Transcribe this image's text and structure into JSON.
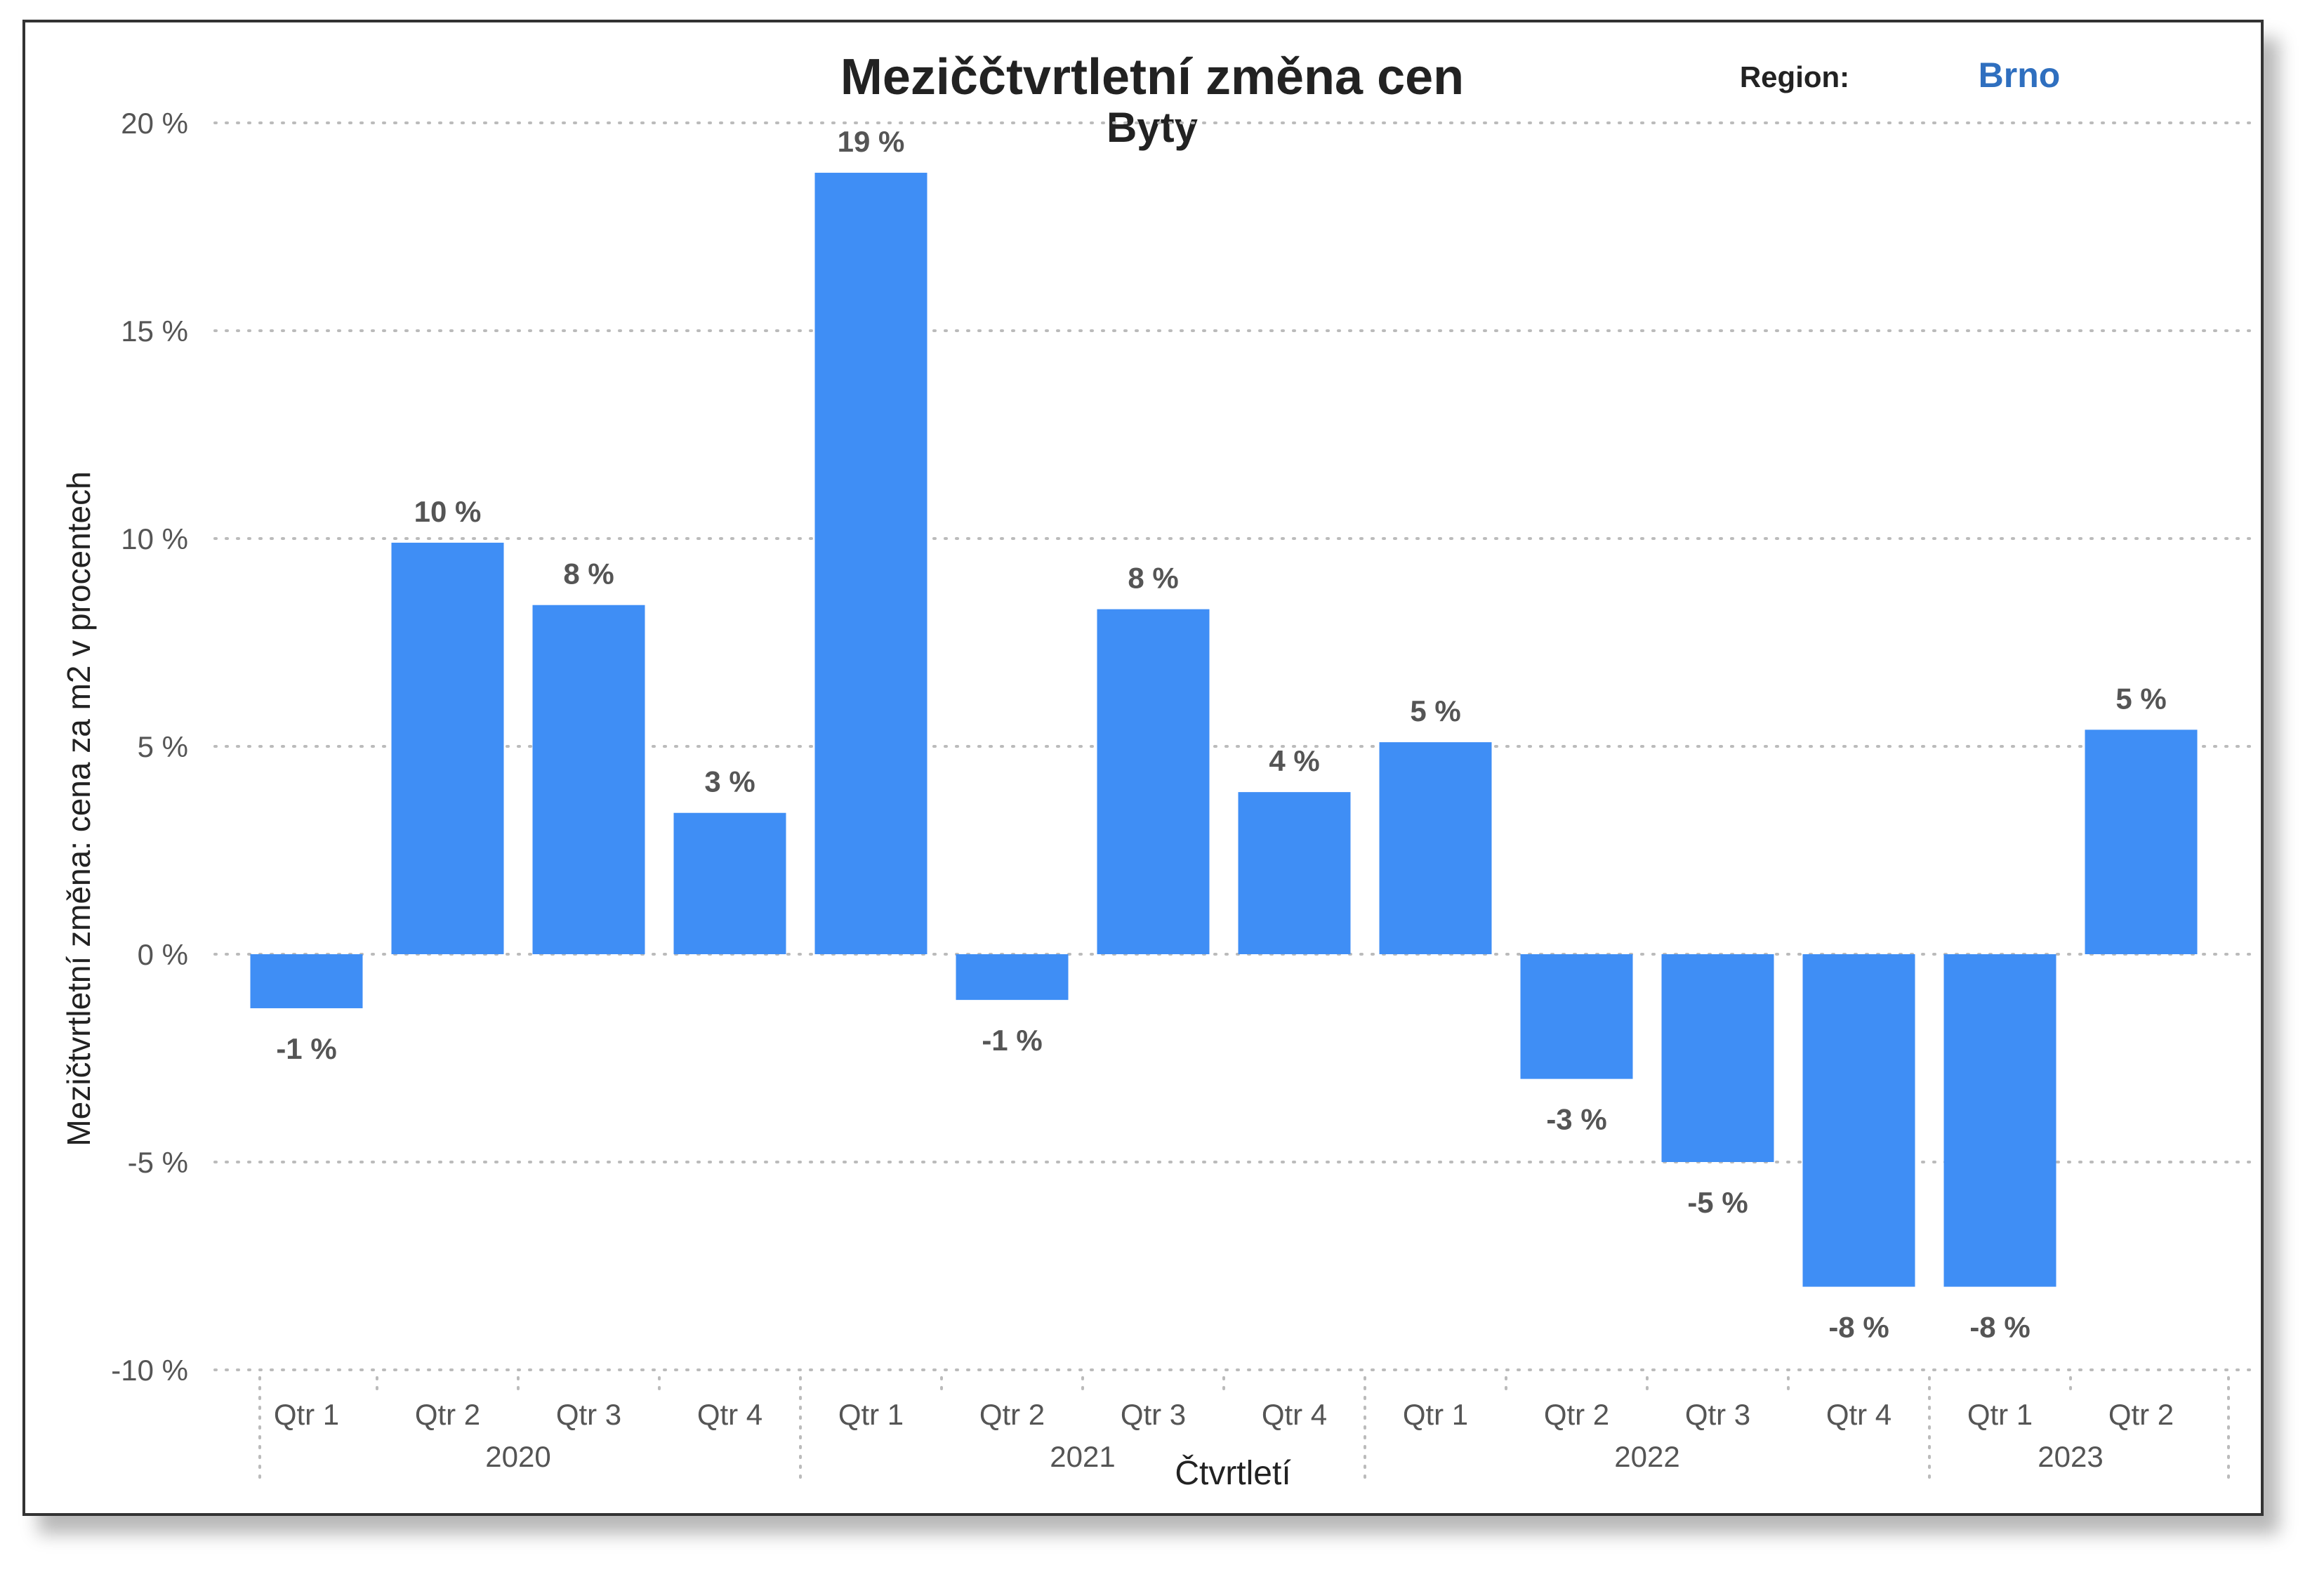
{
  "chart_data": {
    "type": "bar",
    "title": "Meziččtvrtletní změna cen",
    "subtitle": "Byty",
    "filter": {
      "label": "Region:",
      "value": "Brno"
    },
    "xlabel": "Čtvrtletí",
    "ylabel": "Mezičtvrtletní změna: cena za m2 v procentech",
    "ylim": [
      -10,
      20
    ],
    "yticks": [
      -10,
      -5,
      0,
      5,
      10,
      15,
      20
    ],
    "ytick_labels": [
      "-10 %",
      "-5 %",
      "0 %",
      "5 %",
      "10 %",
      "15 %",
      "20 %"
    ],
    "grid": true,
    "categories": [
      {
        "quarter": "Qtr 1",
        "year": "2020"
      },
      {
        "quarter": "Qtr 2",
        "year": "2020"
      },
      {
        "quarter": "Qtr 3",
        "year": "2020"
      },
      {
        "quarter": "Qtr 4",
        "year": "2020"
      },
      {
        "quarter": "Qtr 1",
        "year": "2021"
      },
      {
        "quarter": "Qtr 2",
        "year": "2021"
      },
      {
        "quarter": "Qtr 3",
        "year": "2021"
      },
      {
        "quarter": "Qtr 4",
        "year": "2021"
      },
      {
        "quarter": "Qtr 1",
        "year": "2022"
      },
      {
        "quarter": "Qtr 2",
        "year": "2022"
      },
      {
        "quarter": "Qtr 3",
        "year": "2022"
      },
      {
        "quarter": "Qtr 4",
        "year": "2022"
      },
      {
        "quarter": "Qtr 1",
        "year": "2023"
      },
      {
        "quarter": "Qtr 2",
        "year": "2023"
      }
    ],
    "years": [
      "2020",
      "2021",
      "2022",
      "2023"
    ],
    "values": [
      -1.3,
      9.9,
      8.4,
      3.4,
      18.8,
      -1.1,
      8.3,
      3.9,
      5.1,
      -3.0,
      -5.0,
      -8.0,
      -8.0,
      5.4
    ],
    "data_labels": [
      "-1 %",
      "10 %",
      "8 %",
      "3 %",
      "19 %",
      "-1 %",
      "8 %",
      "4 %",
      "5 %",
      "-3 %",
      "-5 %",
      "-8 %",
      "-8 %",
      "5 %"
    ],
    "colors": {
      "bar": "#3f8ef5",
      "highlight_label_bg": "#cfe2fb",
      "region_value": "#2f6fbf",
      "grid": "#bbbbbb"
    }
  }
}
